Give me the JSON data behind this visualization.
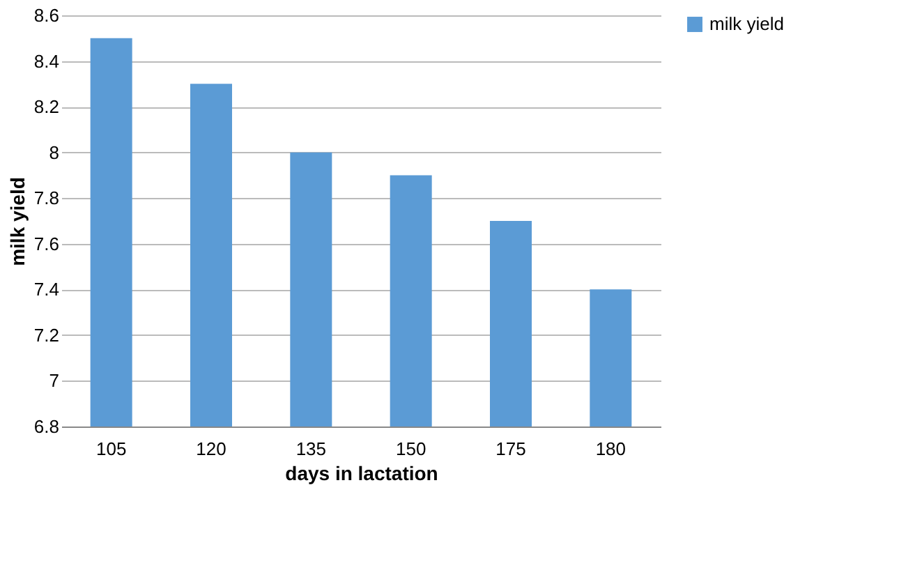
{
  "chart_data": {
    "type": "bar",
    "xlabel": "days in lactation",
    "ylabel": "milk yield",
    "categories": [
      "105",
      "120",
      "135",
      "150",
      "175",
      "180"
    ],
    "series": [
      {
        "name": "milk yield",
        "color": "#5b9bd5",
        "values": [
          8.5,
          8.3,
          8.0,
          7.9,
          7.7,
          7.4
        ]
      }
    ],
    "ylim": [
      6.8,
      8.6
    ],
    "yticks": [
      6.8,
      7,
      7.2,
      7.4,
      7.6,
      7.8,
      8,
      8.2,
      8.4,
      8.6
    ],
    "grid": "y",
    "legend": "right"
  }
}
